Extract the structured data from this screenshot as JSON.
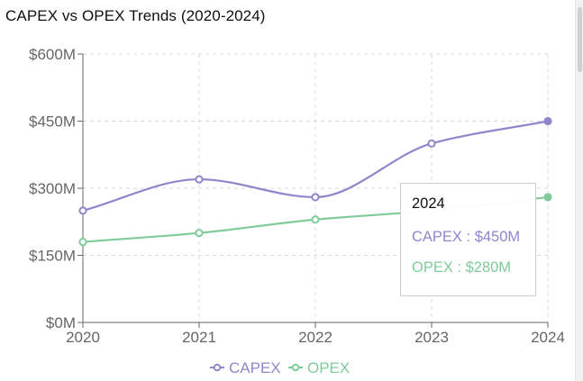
{
  "title": "CAPEX vs OPEX Trends (2020-2024)",
  "colors": {
    "capex": "#8f86cc",
    "opex": "#7fcb9a",
    "grid": "#d9d9d9",
    "axis": "#666666"
  },
  "chart_data": {
    "type": "line",
    "title": "CAPEX vs OPEX Trends (2020-2024)",
    "xlabel": "",
    "ylabel": "",
    "categories": [
      "2020",
      "2021",
      "2022",
      "2023",
      "2024"
    ],
    "y_ticks": [
      "$0M",
      "$150M",
      "$300M",
      "$450M",
      "$600M"
    ],
    "y_tick_values": [
      0,
      150,
      300,
      450,
      600
    ],
    "ylim": [
      0,
      600
    ],
    "grid": true,
    "legend_position": "bottom",
    "series": [
      {
        "name": "CAPEX",
        "values": [
          250,
          320,
          280,
          400,
          450
        ]
      },
      {
        "name": "OPEX",
        "values": [
          180,
          200,
          230,
          250,
          280
        ]
      }
    ]
  },
  "tooltip": {
    "title": "2024",
    "capex_line": "CAPEX : $450M",
    "opex_line": "OPEX : $280M"
  },
  "legend": {
    "capex": "CAPEX",
    "opex": "OPEX"
  }
}
